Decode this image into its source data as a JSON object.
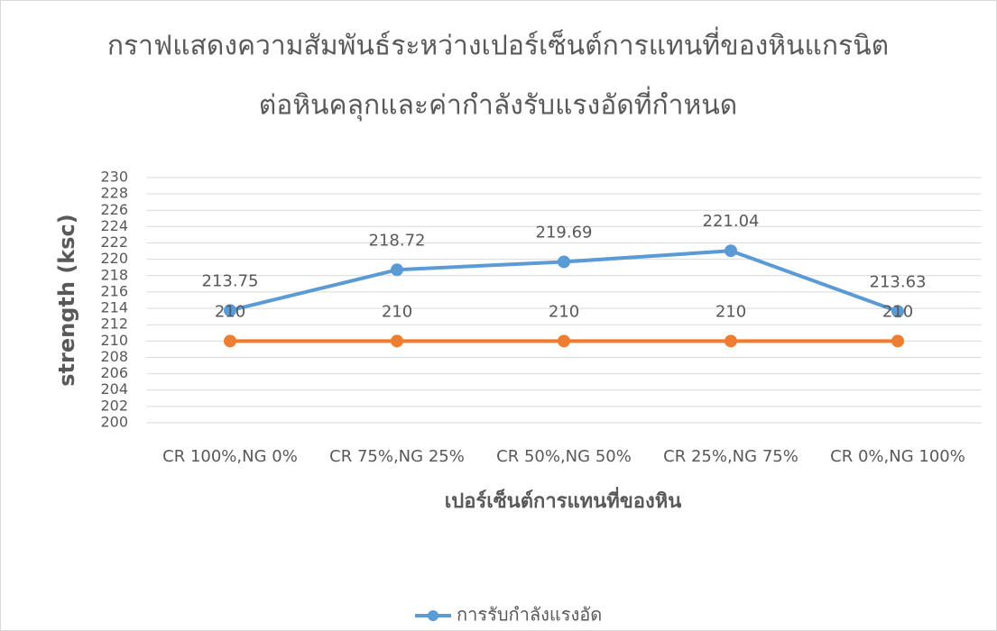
{
  "chart_data": {
    "type": "line",
    "title": [
      "กราฟแสดงความสัมพันธ์ระหว่างเปอร์เซ็นต์การแทนที่ของหินแกรนิต",
      "ต่อหินคลุกและค่ากำลังรับแรงอัดที่กำหนด"
    ],
    "x_label": "เปอร์เซ็นต์การแทนที่ของหิน",
    "y_label": "strength (ksc)",
    "categories": [
      "CR 100%,NG 0%",
      "CR 75%,NG 25%",
      "CR 50%,NG 50%",
      "CR 25%,NG 75%",
      "CR 0%,NG 100%"
    ],
    "series": [
      {
        "name": "การรับกำลังแรงอัด",
        "color": "#5b9bd5",
        "values": [
          213.75,
          218.72,
          219.69,
          221.04,
          213.63
        ]
      },
      {
        "color": "#ed7d31",
        "values": [
          210,
          210,
          210,
          210,
          210
        ]
      }
    ],
    "ylim": [
      200,
      230
    ],
    "yticks": [
      200,
      202,
      204,
      206,
      208,
      210,
      212,
      214,
      216,
      218,
      220,
      222,
      224,
      226,
      228,
      230
    ],
    "grid": true,
    "legend": "bottom"
  }
}
